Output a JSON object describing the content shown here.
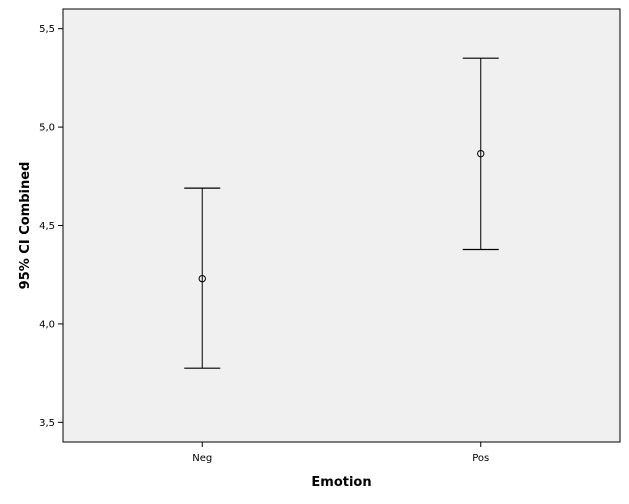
{
  "chart_data": {
    "type": "errorbar",
    "categories": [
      "Neg",
      "Pos"
    ],
    "series": [
      {
        "points": [
          {
            "category": "Neg",
            "mean": 4.23,
            "lower": 3.775,
            "upper": 4.69
          },
          {
            "category": "Pos",
            "mean": 4.865,
            "lower": 4.378,
            "upper": 5.35
          }
        ]
      }
    ],
    "xlabel": "Emotion",
    "ylabel": "95% CI Combined",
    "ylim": [
      3.4,
      5.6
    ],
    "yticks": [
      3.5,
      4.0,
      4.5,
      5.0,
      5.5
    ],
    "ytick_labels": [
      "3,5",
      "4,0",
      "4,5",
      "5,0",
      "5,5"
    ],
    "grid": false,
    "colors": {
      "plot_background": "#f0f0f0",
      "marks": "#000000"
    }
  }
}
